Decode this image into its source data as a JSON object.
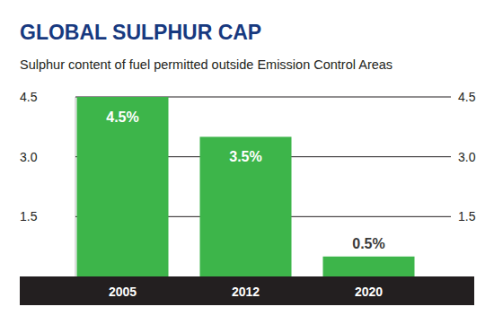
{
  "chart_data": {
    "type": "bar",
    "title": "GLOBAL SULPHUR CAP",
    "subtitle": "Sulphur content of fuel permitted outside Emission Control Areas",
    "categories": [
      "2005",
      "2012",
      "2020"
    ],
    "values": [
      4.5,
      3.5,
      0.5
    ],
    "value_labels": [
      "4.5%",
      "3.5%",
      "0.5%"
    ],
    "color": "#3db54a",
    "ylim": [
      0,
      4.5
    ],
    "yticks": [
      1.5,
      {
        "value": 3,
        "label": "3.0"
      },
      4.5
    ],
    "grid": true,
    "data_labels": true
  }
}
